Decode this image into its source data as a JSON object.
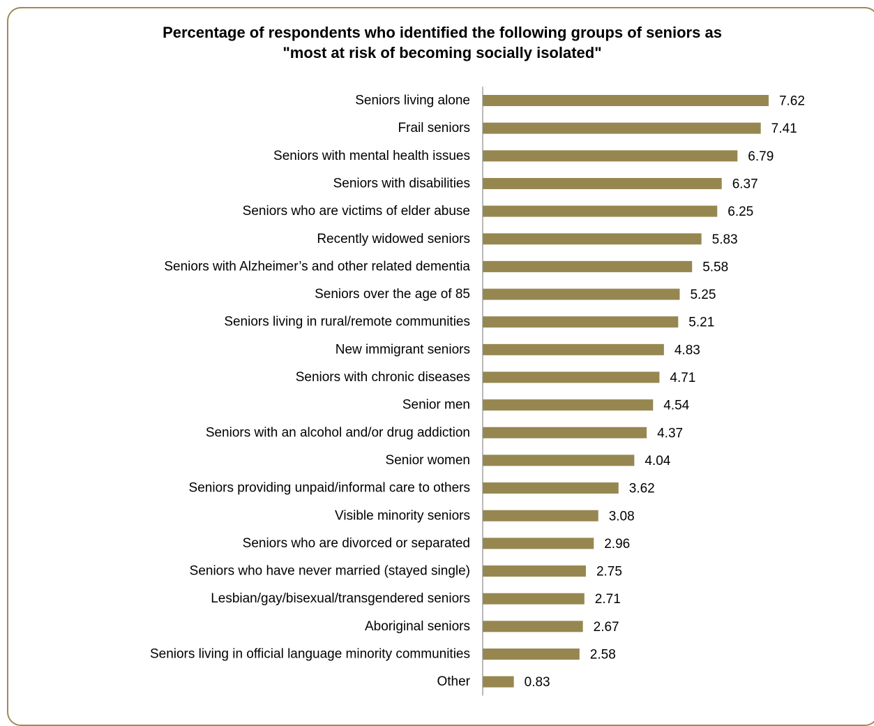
{
  "chart": {
    "title_line1": "Percentage of respondents who identified the following groups of seniors as",
    "title_line2": "\"most at risk of becoming socially isolated\""
  },
  "colors": {
    "bar": "#968750",
    "frame": "#9a8c5a",
    "axis": "#8c8c8c",
    "text": "#000000"
  },
  "chart_data": {
    "type": "bar",
    "orientation": "horizontal",
    "title": "Percentage of respondents who identified the following groups of seniors as \"most at risk of becoming socially isolated\"",
    "xlabel": "",
    "ylabel": "",
    "xlim": [
      0,
      8.2
    ],
    "grid": false,
    "legend": "none",
    "categories": [
      "Seniors living alone",
      "Frail seniors",
      "Seniors with mental health issues",
      "Seniors with disabilities",
      "Seniors who are victims of elder abuse",
      "Recently widowed seniors",
      "Seniors with Alzheimer’s and other related dementia",
      "Seniors over the age of 85",
      "Seniors living in rural/remote communities",
      "New immigrant seniors",
      "Seniors with chronic diseases",
      "Senior men",
      "Seniors with an alcohol and/or drug addiction",
      "Senior women",
      "Seniors providing unpaid/informal care to others",
      "Visible minority seniors",
      "Seniors who are divorced or separated",
      "Seniors who have never married (stayed single)",
      "Lesbian/gay/bisexual/transgendered seniors",
      "Aboriginal seniors",
      "Seniors living in official language minority communities",
      "Other"
    ],
    "values": [
      7.62,
      7.41,
      6.79,
      6.37,
      6.25,
      5.83,
      5.58,
      5.25,
      5.21,
      4.83,
      4.71,
      4.54,
      4.37,
      4.04,
      3.62,
      3.08,
      2.96,
      2.75,
      2.71,
      2.67,
      2.58,
      0.83
    ],
    "value_labels": [
      "7.62",
      "7.41",
      "6.79",
      "6.37",
      "6.25",
      "5.83",
      "5.58",
      "5.25",
      "5.21",
      "4.83",
      "4.71",
      "4.54",
      "4.37",
      "4.04",
      "3.62",
      "3.08",
      "2.96",
      "2.75",
      "2.71",
      "2.67",
      "2.58",
      "0.83"
    ]
  }
}
